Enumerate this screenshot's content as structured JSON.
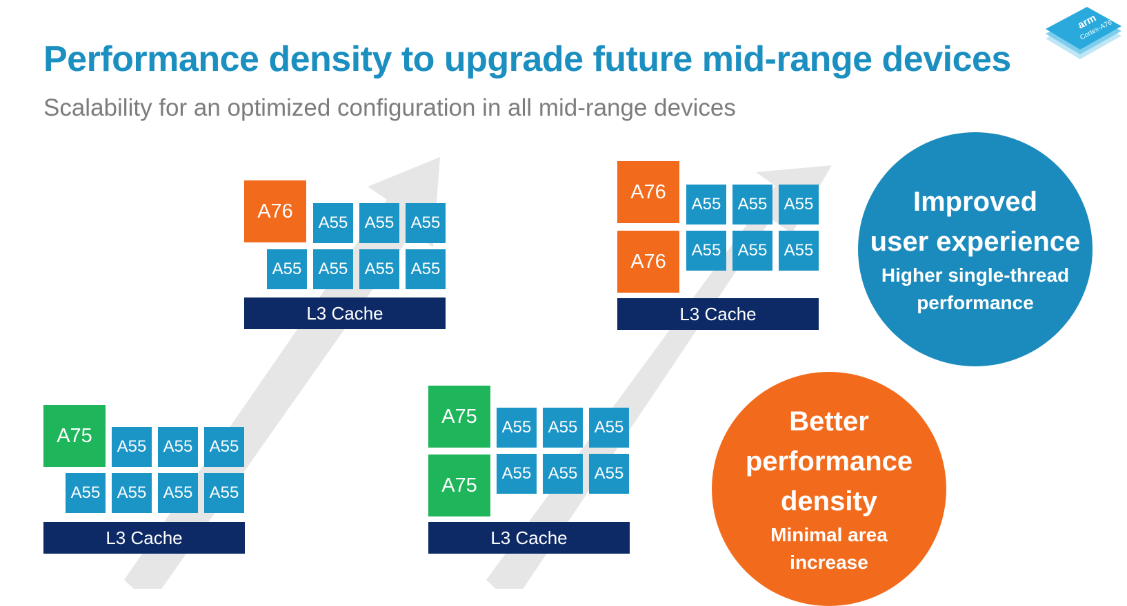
{
  "title": "Performance density to upgrade future mid-range devices",
  "subtitle": "Scalability for an optimized configuration in all mid-range devices",
  "logo": {
    "brand": "arm",
    "product": "Cortex-A76"
  },
  "clusters": [
    {
      "name": "a75-single",
      "big_cores": [
        "A75"
      ],
      "little_cores": [
        "A55",
        "A55",
        "A55",
        "A55",
        "A55",
        "A55",
        "A55"
      ],
      "cache": "L3 Cache"
    },
    {
      "name": "a76-single",
      "big_cores": [
        "A76"
      ],
      "little_cores": [
        "A55",
        "A55",
        "A55",
        "A55",
        "A55",
        "A55",
        "A55"
      ],
      "cache": "L3 Cache"
    },
    {
      "name": "a75-dual",
      "big_cores": [
        "A75",
        "A75"
      ],
      "little_cores": [
        "A55",
        "A55",
        "A55",
        "A55",
        "A55",
        "A55"
      ],
      "cache": "L3 Cache"
    },
    {
      "name": "a76-dual",
      "big_cores": [
        "A76",
        "A76"
      ],
      "little_cores": [
        "A55",
        "A55",
        "A55",
        "A55",
        "A55",
        "A55"
      ],
      "cache": "L3 Cache"
    }
  ],
  "callouts": {
    "blue": {
      "heading_line1": "Improved",
      "heading_line2": "user experience",
      "sub_line1": "Higher single-thread",
      "sub_line2": "performance",
      "color": "#1b8bbd"
    },
    "orange": {
      "heading_line1": "Better",
      "heading_line2": "performance",
      "heading_line3": "density",
      "sub_line1": "Minimal area",
      "sub_line2": "increase",
      "color": "#f26b1c"
    }
  },
  "colors": {
    "title": "#1a8fc0",
    "a76": "#f26b1c",
    "a75": "#1fb55a",
    "a55": "#1b95c6",
    "cache": "#0d2a66",
    "arrow": "#e4e4e4"
  }
}
